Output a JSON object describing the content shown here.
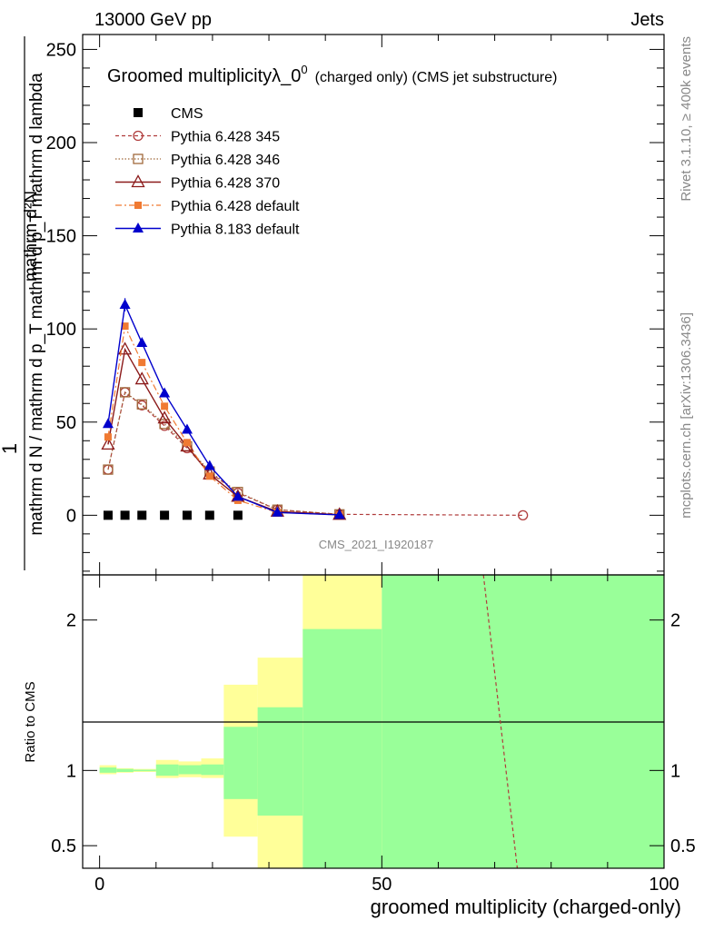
{
  "header": {
    "left": "13000 GeV pp",
    "right": "Jets"
  },
  "side_labels": {
    "rivet": "Rivet 3.1.10, ≥ 400k events",
    "mcplots": "mcplots.cern.ch [arXiv:1306.3436]"
  },
  "watermark": "CMS_2021_I1920187",
  "chart_data": {
    "type": "line",
    "title": "Groomed multiplicityλ_0",
    "title_sup": "0",
    "title_suffix": "(charged only) (CMS jet substructure)",
    "ylabel_top": "1",
    "ylabel_num": "mathrm d²N",
    "ylabel_den": "mathrm d N / mathrm d p_T mathrm d p_T mathrm d lambda",
    "xlabel": "groomed multiplicity (charged-only)",
    "xlim": [
      -3,
      100
    ],
    "ylim": [
      -32,
      258
    ],
    "x_ticks": [
      "0",
      "50",
      "100"
    ],
    "y_ticks": [
      "0",
      "50",
      "100",
      "150",
      "200",
      "250"
    ],
    "ratio": {
      "ylabel": "Ratio to CMS",
      "ylim": [
        0.35,
        2.3
      ],
      "y_ticks": [
        "0.5",
        "1",
        "2"
      ],
      "bands": [
        {
          "x0": 0,
          "x1": 3,
          "yellow": [
            0.975,
            1.035
          ],
          "green": [
            0.985,
            1.02
          ]
        },
        {
          "x0": 3,
          "x1": 6,
          "yellow": [
            0.985,
            1.015
          ],
          "green": [
            0.99,
            1.01
          ]
        },
        {
          "x0": 6,
          "x1": 10,
          "yellow": [
            0.99,
            1.01
          ],
          "green": [
            0.995,
            1.005
          ]
        },
        {
          "x0": 10,
          "x1": 14,
          "yellow": [
            0.95,
            1.07
          ],
          "green": [
            0.965,
            1.04
          ]
        },
        {
          "x0": 14,
          "x1": 18,
          "yellow": [
            0.955,
            1.06
          ],
          "green": [
            0.975,
            1.035
          ]
        },
        {
          "x0": 18,
          "x1": 22,
          "yellow": [
            0.95,
            1.08
          ],
          "green": [
            0.97,
            1.04
          ]
        },
        {
          "x0": 22,
          "x1": 28,
          "yellow": [
            0.56,
            1.57
          ],
          "green": [
            0.81,
            1.29
          ]
        },
        {
          "x0": 28,
          "x1": 36,
          "yellow": [
            0.35,
            1.75
          ],
          "green": [
            0.7,
            1.42
          ]
        },
        {
          "x0": 36,
          "x1": 50,
          "yellow": [
            0.35,
            2.3
          ],
          "green": [
            0.35,
            1.94
          ]
        },
        {
          "x0": 50,
          "x1": 100,
          "yellow": [
            0.35,
            2.3
          ],
          "green": [
            0.35,
            2.3
          ]
        }
      ],
      "series_line": {
        "name": "Pythia 6.428 345",
        "x": [
          68,
          74
        ],
        "y": [
          2.3,
          0.35
        ]
      }
    },
    "series": [
      {
        "name": "CMS",
        "style": "data",
        "color": "#000000",
        "x": [
          1.5,
          4.5,
          7.5,
          11.5,
          15.5,
          19.5,
          24.5
        ],
        "y": [
          0,
          0,
          0,
          0,
          0,
          0,
          0
        ]
      },
      {
        "name": "Pythia 6.428 345",
        "style": "p345",
        "color": "#b03c3c",
        "x": [
          1.5,
          4.5,
          7.5,
          11.5,
          15.5,
          19.5,
          24.5,
          31.5,
          42.5,
          75
        ],
        "y": [
          24.5,
          66,
          59,
          48,
          36,
          23,
          12,
          3,
          0.5,
          0
        ]
      },
      {
        "name": "Pythia 6.428 346",
        "style": "p346",
        "color": "#a0693c",
        "x": [
          1.5,
          4.5,
          7.5,
          11.5,
          15.5,
          19.5,
          24.5,
          31.5,
          42.5
        ],
        "y": [
          24.5,
          66,
          59.5,
          49,
          37,
          23.5,
          12.5,
          3,
          0.5
        ]
      },
      {
        "name": "Pythia 6.428 370",
        "style": "p370",
        "color": "#8b1a1a",
        "x": [
          1.5,
          4.5,
          7.5,
          11.5,
          15.5,
          19.5,
          24.5,
          31.5,
          42.5
        ],
        "y": [
          38,
          89,
          73,
          52,
          37,
          22,
          10,
          2,
          0.3
        ]
      },
      {
        "name": "Pythia 6.428 default",
        "style": "pdef",
        "color": "#f07a32",
        "x": [
          1.5,
          4.5,
          7.5,
          11.5,
          15.5,
          19.5,
          24.5,
          31.5,
          42.5
        ],
        "y": [
          42,
          101.5,
          82,
          58.5,
          39,
          21,
          8,
          1.5,
          0.2
        ]
      },
      {
        "name": "Pythia 8.183 default",
        "style": "p8",
        "color": "#0000cc",
        "x": [
          1.5,
          4.5,
          7.5,
          11.5,
          15.5,
          19.5,
          24.5,
          31.5,
          42.5
        ],
        "y": [
          49,
          113,
          92.5,
          65.5,
          46,
          26.5,
          10,
          1.5,
          0.2
        ]
      }
    ]
  }
}
